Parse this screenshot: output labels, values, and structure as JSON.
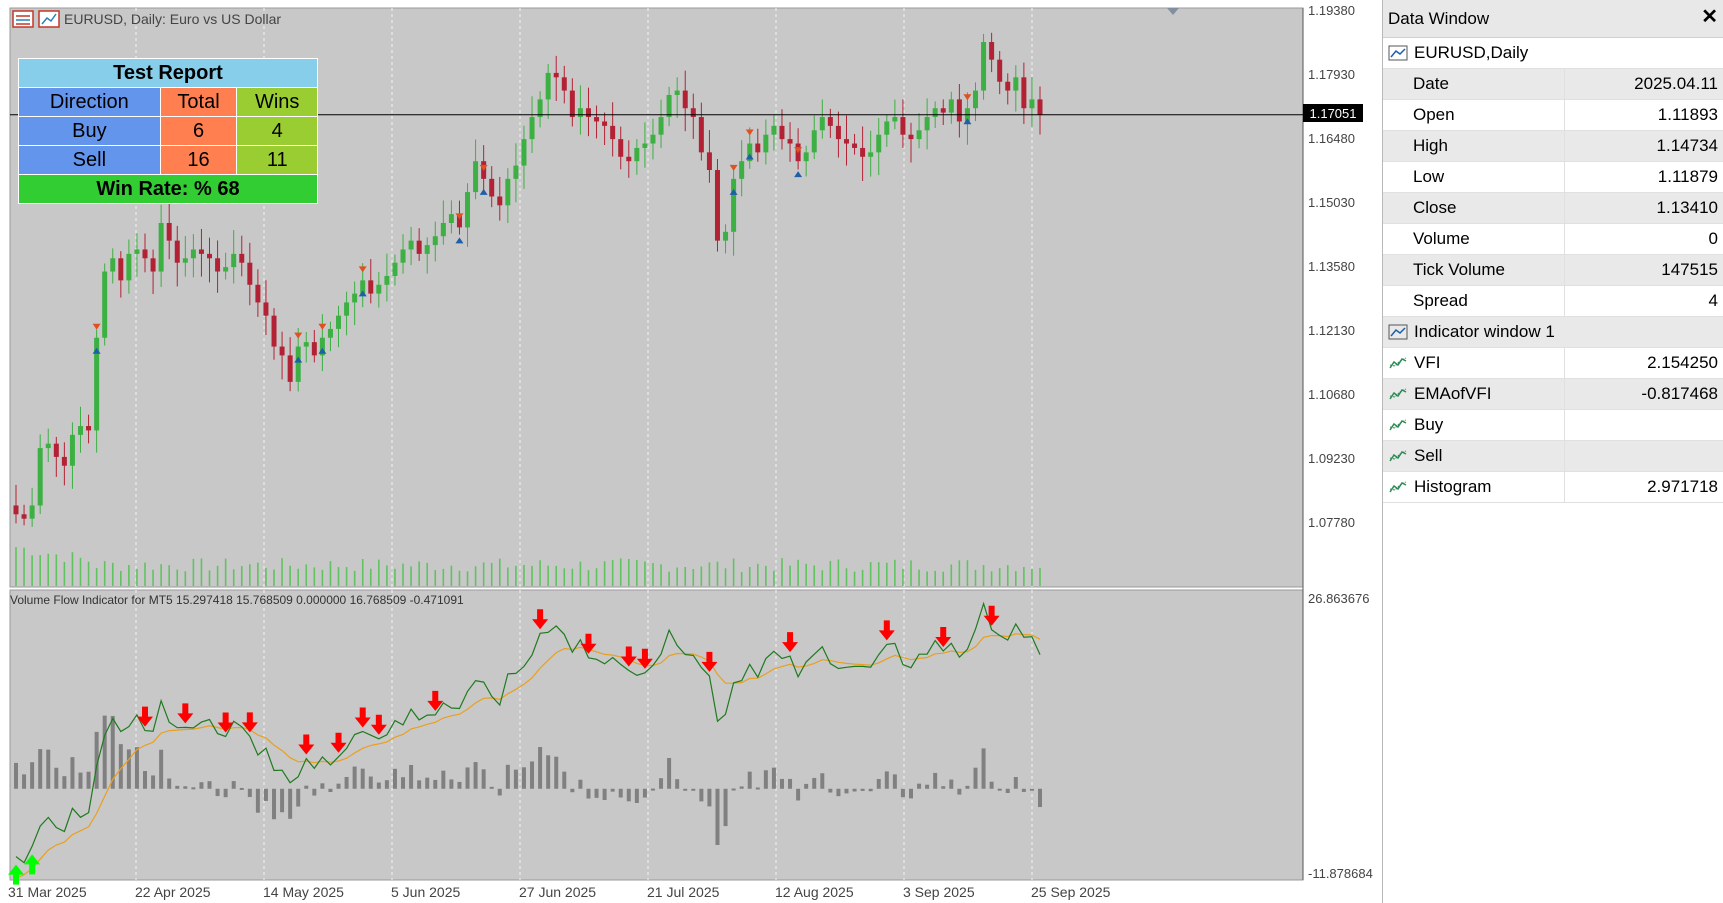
{
  "window": {
    "symbol_title": "EURUSD, Daily:  Euro vs US Dollar"
  },
  "report": {
    "title": "Test Report",
    "headers": [
      "Direction",
      "Total",
      "Wins"
    ],
    "rows": [
      {
        "direction": "Buy",
        "total": "6",
        "wins": "4"
      },
      {
        "direction": "Sell",
        "total": "16",
        "wins": "11"
      }
    ],
    "win_rate": "Win Rate: %  68"
  },
  "price_axis": [
    "1.19380",
    "1.17930",
    "1.16480",
    "1.15030",
    "1.13580",
    "1.12130",
    "1.10680",
    "1.09230",
    "1.07780"
  ],
  "current_price": "1.17051",
  "indicator": {
    "label": "Volume Flow Indicator for MT5 15.297418 15.768509 0.000000 16.768509 -0.471091",
    "axis_top": "26.863676",
    "axis_bottom": "-11.878684"
  },
  "time_axis": [
    "31 Mar 2025",
    "22 Apr 2025",
    "14 May 2025",
    "5 Jun 2025",
    "27 Jun 2025",
    "21 Jul 2025",
    "12 Aug 2025",
    "3 Sep 2025",
    "25 Sep 2025"
  ],
  "colors": {
    "background": "#c8c8c8",
    "bull": "#3cb043",
    "bear": "#b22234",
    "vfi_line": "#1f7a1f",
    "ema_line": "#e8a020",
    "sell_arrow": "#ff0000",
    "buy_arrow": "#00ff00",
    "volume": "#5fc35f",
    "histogram": "#808080"
  },
  "data_window": {
    "title": "Data Window",
    "symbol": "EURUSD,Daily",
    "fields": [
      {
        "label": "Date",
        "value": "2025.04.11"
      },
      {
        "label": "Open",
        "value": "1.11893"
      },
      {
        "label": "High",
        "value": "1.14734"
      },
      {
        "label": "Low",
        "value": "1.11879"
      },
      {
        "label": "Close",
        "value": "1.13410"
      },
      {
        "label": "Volume",
        "value": "0"
      },
      {
        "label": "Tick Volume",
        "value": "147515"
      },
      {
        "label": "Spread",
        "value": "4"
      }
    ],
    "indicator_group": "Indicator window 1",
    "indicator_fields": [
      {
        "label": "VFI",
        "value": "2.154250"
      },
      {
        "label": "EMAofVFI",
        "value": "-0.817468"
      },
      {
        "label": "Buy",
        "value": ""
      },
      {
        "label": "Sell",
        "value": ""
      },
      {
        "label": "Histogram",
        "value": "2.971718"
      }
    ]
  },
  "chart_data": {
    "type": "candlestick",
    "symbol": "EURUSD",
    "timeframe": "Daily",
    "closes": [
      1.08,
      1.079,
      1.082,
      1.095,
      1.096,
      1.093,
      1.091,
      1.098,
      1.1,
      1.099,
      1.12,
      1.135,
      1.138,
      1.133,
      1.139,
      1.14,
      1.138,
      1.135,
      1.146,
      1.142,
      1.137,
      1.138,
      1.14,
      1.139,
      1.138,
      1.135,
      1.136,
      1.139,
      1.137,
      1.132,
      1.128,
      1.125,
      1.118,
      1.116,
      1.11,
      1.118,
      1.119,
      1.116,
      1.12,
      1.122,
      1.125,
      1.128,
      1.13,
      1.133,
      1.13,
      1.132,
      1.134,
      1.137,
      1.14,
      1.142,
      1.139,
      1.141,
      1.143,
      1.146,
      1.148,
      1.145,
      1.153,
      1.16,
      1.156,
      1.152,
      1.15,
      1.156,
      1.159,
      1.165,
      1.17,
      1.174,
      1.18,
      1.179,
      1.176,
      1.17,
      1.172,
      1.17,
      1.169,
      1.168,
      1.165,
      1.161,
      1.16,
      1.163,
      1.164,
      1.166,
      1.17,
      1.175,
      1.176,
      1.172,
      1.17,
      1.162,
      1.158,
      1.142,
      1.144,
      1.156,
      1.16,
      1.164,
      1.162,
      1.166,
      1.168,
      1.165,
      1.164,
      1.16,
      1.162,
      1.167,
      1.17,
      1.168,
      1.165,
      1.164,
      1.163,
      1.161,
      1.162,
      1.166,
      1.169,
      1.17,
      1.166,
      1.165,
      1.167,
      1.17,
      1.172,
      1.171,
      1.174,
      1.169,
      1.172,
      1.176,
      1.187,
      1.183,
      1.178,
      1.176,
      1.179,
      1.172,
      1.174,
      1.1705
    ],
    "volume": "tick volume bars",
    "indicator": {
      "name": "Volume Flow Indicator",
      "series": [
        "VFI",
        "EMAofVFI",
        "Histogram"
      ]
    }
  }
}
